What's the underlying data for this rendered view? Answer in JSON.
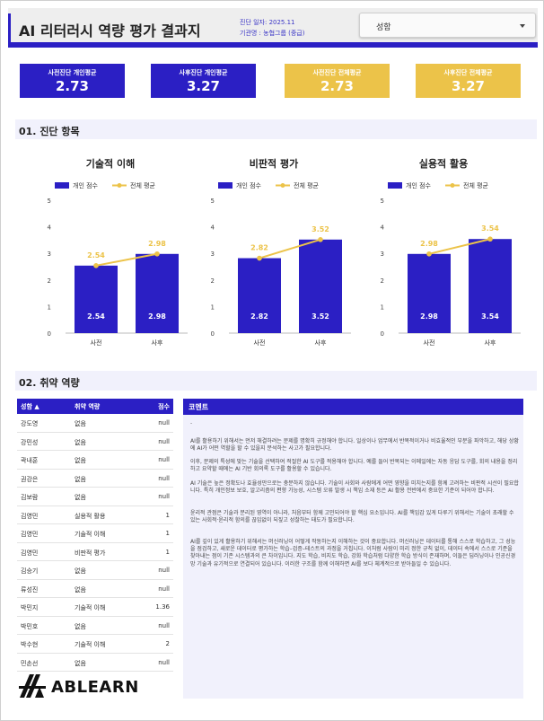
{
  "header": {
    "title": "AI 리터러시 역량 평가 결과지",
    "date_line": "진단 일자: 2025.11",
    "org_line": "기관명 : 농협그룹 (중급)",
    "select_value": "성함"
  },
  "kpis": [
    {
      "label": "사전진단 개인평균",
      "value": "2.73",
      "color": "blue"
    },
    {
      "label": "사후진단 개인평균",
      "value": "3.27",
      "color": "blue"
    },
    {
      "label": "사전진단 전체평균",
      "value": "2.73",
      "color": "yellow"
    },
    {
      "label": "사후진단 전체평균",
      "value": "3.27",
      "color": "yellow"
    }
  ],
  "section1": "01. 진단 항목",
  "section2": "02. 취약 역량",
  "legend": {
    "individual": "개인 점수",
    "overall": "전체 평균"
  },
  "colors": {
    "bar": "#2b1fc4",
    "line": "#ecc349",
    "accent": "#2b1fc4"
  },
  "chart_data": [
    {
      "type": "bar",
      "title": "기술적 이해",
      "categories": [
        "사전",
        "사후"
      ],
      "series": [
        {
          "name": "개인 점수",
          "values": [
            2.54,
            2.98
          ]
        },
        {
          "name": "전체 평균",
          "values": [
            2.54,
            2.98
          ]
        }
      ],
      "ylim": [
        0,
        5
      ],
      "yticks": [
        0,
        1,
        2,
        3,
        4,
        5
      ]
    },
    {
      "type": "bar",
      "title": "비판적 평가",
      "categories": [
        "사전",
        "사후"
      ],
      "series": [
        {
          "name": "개인 점수",
          "values": [
            2.82,
            3.52
          ]
        },
        {
          "name": "전체 평균",
          "values": [
            2.82,
            3.52
          ]
        }
      ],
      "ylim": [
        0,
        5
      ],
      "yticks": [
        0,
        1,
        2,
        3,
        4,
        5
      ]
    },
    {
      "type": "bar",
      "title": "실용적 활용",
      "categories": [
        "사전",
        "사후"
      ],
      "series": [
        {
          "name": "개인 점수",
          "values": [
            2.98,
            3.54
          ]
        },
        {
          "name": "전체 평균",
          "values": [
            2.98,
            3.54
          ]
        }
      ],
      "ylim": [
        0,
        5
      ],
      "yticks": [
        0,
        1,
        2,
        3,
        4,
        5
      ]
    }
  ],
  "table": {
    "headers": [
      "성함",
      "취약 역량",
      "점수"
    ],
    "rows": [
      [
        "강도영",
        "없음",
        "null"
      ],
      [
        "강민성",
        "없음",
        "null"
      ],
      [
        "곽내훈",
        "없음",
        "null"
      ],
      [
        "권강은",
        "없음",
        "null"
      ],
      [
        "김보람",
        "없음",
        "null"
      ],
      [
        "김영민",
        "실용적 활용",
        "1"
      ],
      [
        "김영민",
        "기술적 이해",
        "1"
      ],
      [
        "김영민",
        "비판적 평가",
        "1"
      ],
      [
        "김승기",
        "없음",
        "null"
      ],
      [
        "류성진",
        "없음",
        "null"
      ],
      [
        "박민지",
        "기술적 이해",
        "1.36"
      ],
      [
        "박민호",
        "없음",
        "null"
      ],
      [
        "박수현",
        "기술적 이해",
        "2"
      ],
      [
        "민손선",
        "없음",
        "null"
      ]
    ]
  },
  "logo_text": "ABLEARN",
  "comments": {
    "header": "코멘트",
    "placeholder": "-",
    "paragraphs": [
      "AI를 활용하기 위해서는 먼저 해결하려는 문제를 명확히 규정해야 합니다. 일상이나 업무에서 반복적이거나 비효율적인 부분을 파악하고, 해당 상황에 AI가 어떤 역할을 할 수 있을지 분석하는 사고가 필요합니다.",
      "이후, 문제의 특성에 맞는 기술을 선택하여 적절한 AI 도구를 적용해야 합니다. 예를 들어 반복되는 이메일에는 자동 응답 도구를, 회의 내용을 정리하고 요약할 때에는 AI 기반 회의록 도구를 활용할 수 있습니다.",
      "AI 기술은 높은 정확도나 효율성만으로는 충분하지 않습니다. 기술이 사회와 사람에게 어떤 영향을 미치는지를 함께 고려하는 비판적 시선이 필요합니다. 특히 개인정보 보호, 알고리즘의 편향 가능성, 시스템 오류 발생 시 책임 소재 등은 AI 활용 전반에서 중요한 기준이 되어야 합니다.",
      "윤리적 관점은 기술과 분리된 영역이 아니라, 처음부터 함께 고민되어야 할 핵심 요소입니다. AI를 책임감 있게 다루기 위해서는 기술이 초래할 수 있는 사회적·윤리적 함의를 끊임없이 되짚고 성찰하는 태도가 필요합니다.",
      "AI를 깊이 있게 활용하기 위해서는 머신러닝이 어떻게 작동하는지 이해하는 것이 중요합니다. 머신러닝은 데이터를 통해 스스로 학습하고, 그 성능을 점검하고, 새로운 데이터로 평가하는 학습–검증–테스트의 과정을 거칩니다. 이처럼 사람이 미리 정한 규칙 없이, 데이터 속에서 스스로 기준을 찾아내는 점이 기존 시스템과의 큰 차이입니다. 지도 학습, 비지도 학습, 강화 학습처럼 다양한 학습 방식이 존재하며, 이들은 딥러닝이나 인공신경망 기술과 유기적으로 연결되어 있습니다. 이러한 구조를 함께 이해하면 AI를 보다 체계적으로 받아들일 수 있습니다."
    ]
  }
}
